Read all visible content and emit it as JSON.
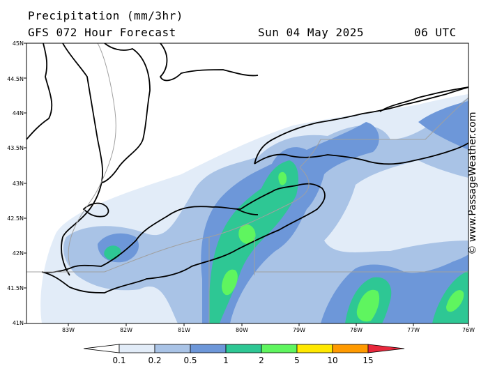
{
  "header": {
    "title_line1": "Precipitation (mm/3hr)",
    "title_line2": "GFS 072 Hour Forecast",
    "date": "Sun 04 May 2025",
    "time": "06 UTC"
  },
  "map": {
    "lat_labels": [
      "45N",
      "44.5N",
      "44N",
      "43.5N",
      "43N",
      "42.5N",
      "42N",
      "41.5N",
      "41N"
    ],
    "lon_labels": [
      "83W",
      "82W",
      "81W",
      "80W",
      "79W",
      "78W",
      "77W",
      "76W"
    ],
    "region": "Lake Erie / Lake Ontario"
  },
  "watermark": "© www.PassageWeather.com",
  "colorbar": {
    "labels": [
      "0.1",
      "0.2",
      "0.5",
      "1",
      "2",
      "5",
      "10",
      "15"
    ],
    "colors": [
      "#ffffff",
      "#e2ecf8",
      "#a9c3e6",
      "#6d97d9",
      "#2ec794",
      "#5ff55f",
      "#ffe800",
      "#ff9a00",
      "#e8283c"
    ]
  },
  "colors": {
    "level_01": "#e2ecf8",
    "level_02": "#a9c3e6",
    "level_05": "#6d97d9",
    "level_1": "#2ec794",
    "level_2": "#5ff55f"
  }
}
